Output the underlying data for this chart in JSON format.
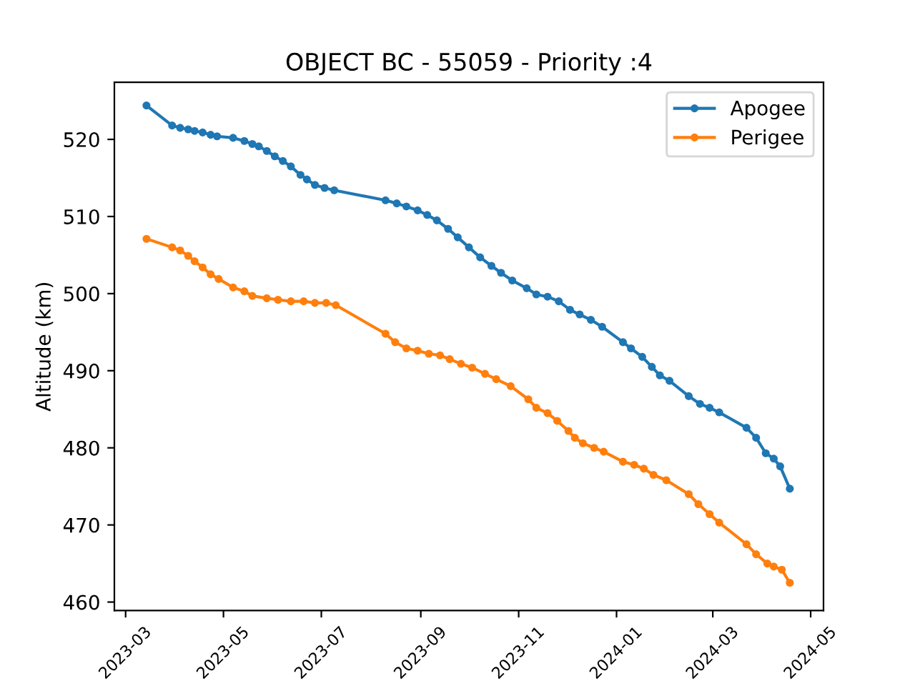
{
  "chart_data": {
    "type": "line",
    "title": "OBJECT BC - 55059 - Priority :4",
    "ylabel": "Altitude (km)",
    "xlim": [
      "2023-02-22",
      "2024-05-09"
    ],
    "ylim": [
      458.9,
      527.4
    ],
    "xticks": [
      {
        "value": "2023-03-01",
        "label": "2023-03"
      },
      {
        "value": "2023-05-01",
        "label": "2023-05"
      },
      {
        "value": "2023-07-01",
        "label": "2023-07"
      },
      {
        "value": "2023-09-01",
        "label": "2023-09"
      },
      {
        "value": "2023-11-01",
        "label": "2023-11"
      },
      {
        "value": "2024-01-01",
        "label": "2024-01"
      },
      {
        "value": "2024-03-01",
        "label": "2024-03"
      },
      {
        "value": "2024-05-01",
        "label": "2024-05"
      }
    ],
    "yticks": [
      460,
      470,
      480,
      490,
      500,
      510,
      520
    ],
    "grid": false,
    "legend": "top right",
    "marker": "circle",
    "line_style": "solid",
    "series": [
      {
        "name": "Apogee",
        "color": "#1f77b4",
        "x": [
          "2023-03-14",
          "2023-03-30",
          "2023-04-04",
          "2023-04-09",
          "2023-04-13",
          "2023-04-18",
          "2023-04-23",
          "2023-04-27",
          "2023-05-07",
          "2023-05-14",
          "2023-05-19",
          "2023-05-23",
          "2023-05-28",
          "2023-06-02",
          "2023-06-07",
          "2023-06-12",
          "2023-06-18",
          "2023-06-22",
          "2023-06-27",
          "2023-07-03",
          "2023-07-09",
          "2023-08-10",
          "2023-08-17",
          "2023-08-23",
          "2023-08-30",
          "2023-09-05",
          "2023-09-11",
          "2023-09-18",
          "2023-09-24",
          "2023-10-01",
          "2023-10-08",
          "2023-10-15",
          "2023-10-21",
          "2023-10-28",
          "2023-11-06",
          "2023-11-12",
          "2023-11-19",
          "2023-11-26",
          "2023-12-03",
          "2023-12-09",
          "2023-12-16",
          "2023-12-23",
          "2024-01-05",
          "2024-01-10",
          "2024-01-17",
          "2024-01-23",
          "2024-01-28",
          "2024-02-03",
          "2024-02-15",
          "2024-02-22",
          "2024-02-28",
          "2024-03-05",
          "2024-03-22",
          "2024-03-28",
          "2024-04-03",
          "2024-04-08",
          "2024-04-12",
          "2024-04-18"
        ],
        "values": [
          524.4,
          521.8,
          521.5,
          521.3,
          521.1,
          520.9,
          520.6,
          520.4,
          520.2,
          519.8,
          519.4,
          519.1,
          518.5,
          517.8,
          517.2,
          516.5,
          515.4,
          514.8,
          514.1,
          513.7,
          513.4,
          512.1,
          511.7,
          511.3,
          510.8,
          510.2,
          509.5,
          508.4,
          507.3,
          506.0,
          504.7,
          503.6,
          502.7,
          501.7,
          500.7,
          499.9,
          499.6,
          499.0,
          497.9,
          497.3,
          496.6,
          495.7,
          493.7,
          492.9,
          491.8,
          490.5,
          489.4,
          488.7,
          486.7,
          485.7,
          485.2,
          484.6,
          482.6,
          481.3,
          479.3,
          478.6,
          477.6,
          474.7
        ]
      },
      {
        "name": "Perigee",
        "color": "#ff7f0e",
        "x": [
          "2023-03-14",
          "2023-03-30",
          "2023-04-04",
          "2023-04-09",
          "2023-04-13",
          "2023-04-18",
          "2023-04-23",
          "2023-04-28",
          "2023-05-07",
          "2023-05-14",
          "2023-05-19",
          "2023-05-28",
          "2023-06-04",
          "2023-06-12",
          "2023-06-20",
          "2023-06-27",
          "2023-07-04",
          "2023-07-10",
          "2023-08-10",
          "2023-08-16",
          "2023-08-23",
          "2023-08-30",
          "2023-09-06",
          "2023-09-13",
          "2023-09-19",
          "2023-09-26",
          "2023-10-03",
          "2023-10-11",
          "2023-10-18",
          "2023-10-27",
          "2023-11-07",
          "2023-11-12",
          "2023-11-19",
          "2023-11-25",
          "2023-12-02",
          "2023-12-06",
          "2023-12-11",
          "2023-12-18",
          "2023-12-24",
          "2024-01-05",
          "2024-01-12",
          "2024-01-18",
          "2024-01-24",
          "2024-02-01",
          "2024-02-15",
          "2024-02-21",
          "2024-02-28",
          "2024-03-05",
          "2024-03-22",
          "2024-03-28",
          "2024-04-04",
          "2024-04-08",
          "2024-04-13",
          "2024-04-18"
        ],
        "values": [
          507.1,
          506.0,
          505.6,
          504.9,
          504.2,
          503.4,
          502.5,
          501.9,
          500.8,
          500.3,
          499.7,
          499.4,
          499.2,
          499.0,
          499.0,
          498.8,
          498.8,
          498.5,
          494.8,
          493.7,
          492.9,
          492.6,
          492.2,
          492.0,
          491.5,
          490.9,
          490.4,
          489.6,
          488.9,
          488.0,
          486.3,
          485.2,
          484.5,
          483.5,
          482.2,
          481.3,
          480.6,
          480.0,
          479.5,
          478.2,
          477.8,
          477.3,
          476.5,
          475.8,
          474.0,
          472.7,
          471.4,
          470.3,
          467.5,
          466.2,
          465.0,
          464.6,
          464.2,
          462.5
        ]
      }
    ]
  }
}
